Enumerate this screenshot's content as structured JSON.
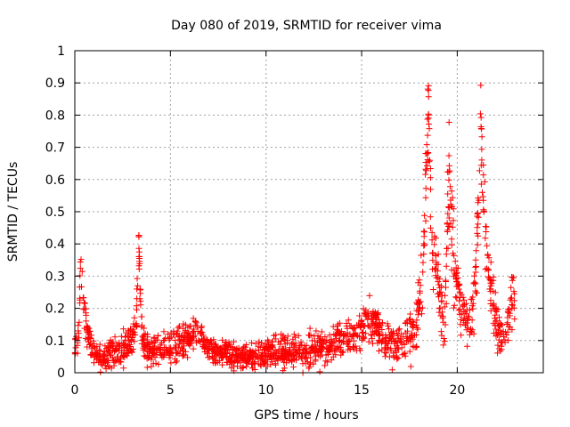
{
  "chart_data": {
    "type": "scatter",
    "title": "Day 080 of 2019, SRMTID for receiver vima",
    "xlabel": "GPS time / hours",
    "ylabel": "SRMTID / TECUs",
    "xlim": [
      0,
      24.5
    ],
    "ylim": [
      0,
      1
    ],
    "grid": true,
    "x_ticks": [
      0,
      5,
      10,
      15,
      20
    ],
    "x_tick_labels": [
      "0",
      "5",
      "10",
      "15",
      "20"
    ],
    "y_ticks": [
      0,
      0.1,
      0.2,
      0.3,
      0.4,
      0.5,
      0.6,
      0.7,
      0.8,
      0.9,
      1
    ],
    "y_tick_labels": [
      "0",
      "0.1",
      "0.2",
      "0.3",
      "0.4",
      "0.5",
      "0.6",
      "0.7",
      "0.8",
      "0.9",
      "1"
    ],
    "marker": "plus",
    "marker_color": "#ff0000",
    "series": [
      {
        "name": "SRMTID",
        "profile_x": [
          0.0,
          0.1,
          0.2,
          0.3,
          0.4,
          0.5,
          0.6,
          0.8,
          1.0,
          1.5,
          2.0,
          2.5,
          3.0,
          3.2,
          3.35,
          3.5,
          3.8,
          4.5,
          5.5,
          6.2,
          6.4,
          7.0,
          8.0,
          9.0,
          10.0,
          11.0,
          12.0,
          13.0,
          14.0,
          14.8,
          15.3,
          15.8,
          16.3,
          17.0,
          17.8,
          18.2,
          18.5,
          18.7,
          19.0,
          19.3,
          19.6,
          19.9,
          20.3,
          20.7,
          21.0,
          21.2,
          21.5,
          21.8,
          22.2,
          22.5,
          22.8,
          23.0
        ],
        "profile_center": [
          0.08,
          0.09,
          0.12,
          0.32,
          0.3,
          0.2,
          0.14,
          0.1,
          0.06,
          0.05,
          0.06,
          0.07,
          0.1,
          0.15,
          0.38,
          0.12,
          0.08,
          0.07,
          0.09,
          0.12,
          0.13,
          0.07,
          0.06,
          0.05,
          0.06,
          0.07,
          0.06,
          0.08,
          0.1,
          0.12,
          0.16,
          0.14,
          0.1,
          0.08,
          0.14,
          0.3,
          0.82,
          0.35,
          0.3,
          0.12,
          0.6,
          0.3,
          0.18,
          0.13,
          0.3,
          0.78,
          0.4,
          0.25,
          0.12,
          0.1,
          0.22,
          0.26
        ],
        "profile_spread": [
          0.03,
          0.03,
          0.04,
          0.05,
          0.06,
          0.05,
          0.04,
          0.03,
          0.03,
          0.03,
          0.03,
          0.04,
          0.04,
          0.05,
          0.05,
          0.04,
          0.04,
          0.04,
          0.04,
          0.04,
          0.04,
          0.03,
          0.03,
          0.03,
          0.03,
          0.04,
          0.04,
          0.04,
          0.04,
          0.05,
          0.05,
          0.05,
          0.05,
          0.05,
          0.06,
          0.08,
          0.1,
          0.08,
          0.08,
          0.06,
          0.15,
          0.1,
          0.06,
          0.05,
          0.08,
          0.12,
          0.08,
          0.07,
          0.06,
          0.05,
          0.06,
          0.06
        ]
      }
    ]
  }
}
